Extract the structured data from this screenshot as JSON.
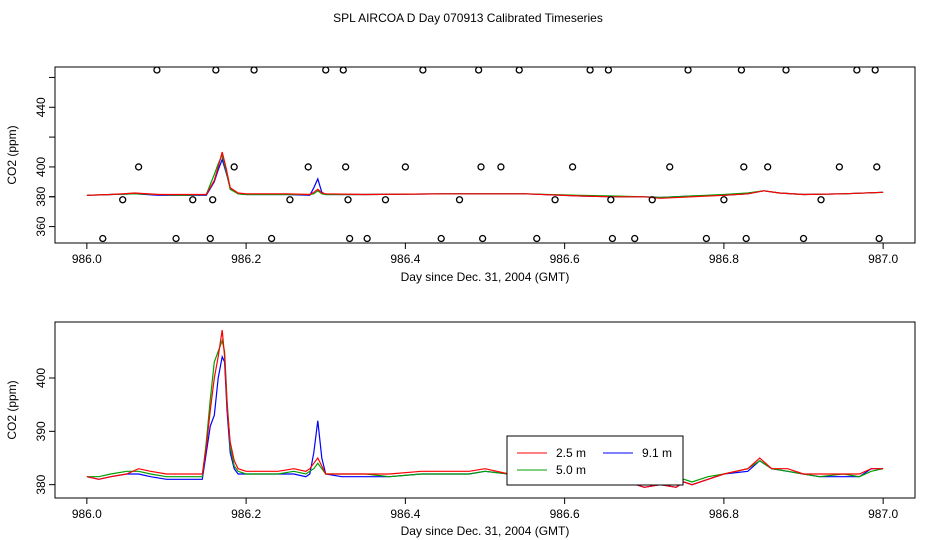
{
  "title": "SPL AIRCOA D  Day 070913  Calibrated Timeseries",
  "chart_data": [
    {
      "type": "line",
      "xlabel": "Day since Dec. 31, 2004 (GMT)",
      "ylabel": "CO2 (ppm)",
      "xlim": [
        985.96,
        987.04
      ],
      "ylim": [
        349,
        467
      ],
      "xticks": [
        "986.0",
        "986.2",
        "986.4",
        "986.6",
        "986.8",
        "987.0"
      ],
      "yticks": [
        "360",
        "380",
        "400",
        "440"
      ],
      "series": [
        {
          "name": "2.5 m",
          "color": "#ff0000",
          "x": [
            986.0,
            986.03,
            986.06,
            986.09,
            986.12,
            986.15,
            986.16,
            986.165,
            986.17,
            986.175,
            986.18,
            986.19,
            986.2,
            986.25,
            986.28,
            986.285,
            986.29,
            986.295,
            986.3,
            986.35,
            986.45,
            986.55,
            986.62,
            986.66,
            986.7,
            986.72,
            986.76,
            986.8,
            986.83,
            986.85,
            986.87,
            986.9,
            986.95,
            987.0
          ],
          "y": [
            381,
            381.5,
            382.5,
            381.5,
            381.5,
            381.5,
            391,
            400,
            410,
            399,
            386,
            382.5,
            382,
            382,
            381.5,
            383,
            385,
            382.5,
            382,
            381.5,
            382,
            382,
            380.5,
            380,
            380,
            379,
            380,
            381,
            382,
            384,
            382.5,
            381.5,
            382,
            383
          ]
        },
        {
          "name": "5.0 m",
          "color": "#00a000",
          "x": [
            986.0,
            986.03,
            986.06,
            986.09,
            986.12,
            986.15,
            986.16,
            986.165,
            986.17,
            986.175,
            986.18,
            986.19,
            986.2,
            986.25,
            986.28,
            986.285,
            986.29,
            986.295,
            986.3,
            986.35,
            986.45,
            986.55,
            986.62,
            986.66,
            986.7,
            986.72,
            986.76,
            986.8,
            986.83,
            986.85,
            986.87,
            986.9,
            986.95,
            987.0
          ],
          "y": [
            381,
            381.5,
            382,
            381.5,
            381,
            381.5,
            395,
            402,
            408,
            397,
            385,
            382,
            381.5,
            381.5,
            381.5,
            382,
            384,
            382,
            381.5,
            381.5,
            382,
            382,
            381,
            380.5,
            380,
            379.5,
            380.5,
            381.5,
            382.5,
            384,
            382.5,
            381.5,
            382,
            383
          ]
        },
        {
          "name": "9.1 m",
          "color": "#0000ff",
          "x": [
            986.0,
            986.03,
            986.06,
            986.09,
            986.12,
            986.15,
            986.16,
            986.165,
            986.17,
            986.175,
            986.18,
            986.19,
            986.2,
            986.25,
            986.28,
            986.285,
            986.29,
            986.295,
            986.3,
            986.35,
            986.45,
            986.55,
            986.62,
            986.66,
            986.7,
            986.72,
            986.76,
            986.8,
            986.83,
            986.85,
            986.87,
            986.9,
            986.95,
            987.0
          ],
          "y": [
            381,
            381.5,
            382,
            381,
            381,
            381,
            390,
            398,
            405,
            396,
            386,
            382,
            381.5,
            381.5,
            381,
            386,
            392,
            383,
            381.5,
            381.5,
            382,
            382,
            380.5,
            380,
            380,
            379.5,
            380.5,
            381,
            382,
            384,
            382.5,
            381.5,
            382,
            383
          ]
        }
      ],
      "markers": {
        "symbol": "circle",
        "x": [
          986.02,
          986.045,
          986.065,
          986.088,
          986.112,
          986.133,
          986.155,
          986.158,
          986.162,
          986.185,
          986.21,
          986.232,
          986.255,
          986.278,
          986.3,
          986.322,
          986.325,
          986.328,
          986.33,
          986.352,
          986.375,
          986.4,
          986.422,
          986.445,
          986.468,
          986.492,
          986.495,
          986.497,
          986.52,
          986.543,
          986.565,
          986.588,
          986.61,
          986.632,
          986.655,
          986.658,
          986.66,
          986.688,
          986.71,
          986.732,
          986.755,
          986.778,
          986.8,
          986.822,
          986.825,
          986.828,
          986.855,
          986.878,
          986.9,
          986.922,
          986.945,
          986.967,
          986.99,
          986.992,
          986.995
        ],
        "y": [
          352,
          378,
          400,
          465,
          352,
          378,
          352,
          378,
          465,
          400,
          465,
          352,
          378,
          400,
          465,
          465,
          400,
          378,
          352,
          352,
          378,
          400,
          465,
          352,
          378,
          465,
          400,
          352,
          400,
          465,
          352,
          378,
          400,
          465,
          465,
          378,
          352,
          352,
          378,
          400,
          465,
          352,
          378,
          465,
          400,
          352,
          400,
          465,
          352,
          378,
          400,
          465,
          465,
          400,
          352
        ]
      }
    },
    {
      "type": "line",
      "xlabel": "Day since Dec. 31, 2004 (GMT)",
      "ylabel": "CO2 (ppm)",
      "xlim": [
        985.96,
        987.04
      ],
      "ylim": [
        377.5,
        410.5
      ],
      "xticks": [
        "986.0",
        "986.2",
        "986.4",
        "986.6",
        "986.8",
        "987.0"
      ],
      "yticks": [
        "380",
        "390",
        "400"
      ],
      "legend": {
        "position": "bottom-right-center",
        "entries": [
          {
            "label": "2.5 m",
            "color": "#ff0000"
          },
          {
            "label": "9.1 m",
            "color": "#0000ff"
          },
          {
            "label": "5.0 m",
            "color": "#00a000"
          }
        ]
      },
      "series": [
        {
          "name": "2.5 m",
          "color": "#ff0000",
          "x": [
            986.0,
            986.015,
            986.03,
            986.05,
            986.065,
            986.08,
            986.1,
            986.12,
            986.145,
            986.15,
            986.155,
            986.16,
            986.165,
            986.17,
            986.173,
            986.176,
            986.18,
            986.185,
            986.19,
            986.2,
            986.22,
            986.24,
            986.26,
            986.275,
            986.28,
            986.285,
            986.29,
            986.295,
            986.3,
            986.32,
            986.35,
            986.38,
            986.42,
            986.45,
            986.48,
            986.5,
            986.53,
            986.56,
            986.6,
            986.63,
            986.66,
            986.69,
            986.7,
            986.72,
            986.74,
            986.75,
            986.76,
            986.78,
            986.8,
            986.83,
            986.845,
            986.86,
            986.88,
            986.9,
            986.92,
            986.95,
            986.97,
            986.985,
            987.0
          ],
          "y": [
            381.5,
            381,
            381.5,
            382,
            383,
            382.5,
            382,
            382,
            382,
            387,
            394,
            400,
            404,
            409,
            404,
            395,
            388,
            384.5,
            383,
            382.5,
            382.5,
            382.5,
            383,
            382.5,
            383,
            384,
            385,
            383.5,
            382,
            382,
            382,
            382,
            382.5,
            382.5,
            382.5,
            383,
            382,
            381.5,
            381,
            380.5,
            380.5,
            380,
            379.5,
            380,
            379.5,
            380.5,
            380,
            381,
            382,
            383,
            385,
            383,
            383,
            382,
            382,
            382,
            382,
            383,
            383
          ]
        },
        {
          "name": "5.0 m",
          "color": "#00a000",
          "x": [
            986.0,
            986.015,
            986.03,
            986.05,
            986.065,
            986.08,
            986.1,
            986.12,
            986.145,
            986.15,
            986.155,
            986.16,
            986.165,
            986.17,
            986.173,
            986.176,
            986.18,
            986.185,
            986.19,
            986.2,
            986.22,
            986.24,
            986.26,
            986.275,
            986.28,
            986.285,
            986.29,
            986.295,
            986.3,
            986.32,
            986.35,
            986.38,
            986.42,
            986.45,
            986.48,
            986.5,
            986.53,
            986.56,
            986.6,
            986.63,
            986.66,
            986.69,
            986.7,
            986.72,
            986.74,
            986.75,
            986.76,
            986.78,
            986.8,
            986.83,
            986.845,
            986.86,
            986.88,
            986.9,
            986.92,
            986.95,
            986.97,
            986.985,
            987.0
          ],
          "y": [
            381.5,
            381.5,
            382,
            382.5,
            382.5,
            382,
            381.5,
            381.5,
            381.5,
            388,
            396,
            403,
            405,
            407,
            405,
            396,
            387,
            383.5,
            382.5,
            382,
            382,
            382,
            382.5,
            382,
            382.5,
            383,
            384,
            383,
            382,
            382,
            382,
            381.5,
            382,
            382,
            382,
            382.5,
            382,
            381.5,
            381,
            381,
            381,
            380,
            380,
            380.5,
            380,
            381,
            380.5,
            381.5,
            382,
            383,
            384.5,
            383,
            382.5,
            382,
            381.5,
            382,
            381.5,
            382.5,
            383
          ]
        },
        {
          "name": "9.1 m",
          "color": "#0000ff",
          "x": [
            986.0,
            986.015,
            986.03,
            986.05,
            986.065,
            986.08,
            986.1,
            986.12,
            986.145,
            986.15,
            986.155,
            986.16,
            986.165,
            986.17,
            986.173,
            986.176,
            986.18,
            986.185,
            986.19,
            986.2,
            986.22,
            986.24,
            986.26,
            986.275,
            986.28,
            986.285,
            986.29,
            986.295,
            986.3,
            986.32,
            986.35,
            986.38,
            986.42,
            986.45,
            986.48,
            986.5,
            986.53,
            986.56,
            986.6,
            986.63,
            986.66,
            986.69,
            986.7,
            986.72,
            986.74,
            986.75,
            986.76,
            986.78,
            986.8,
            986.83,
            986.845,
            986.86,
            986.88,
            986.9,
            986.92,
            986.95,
            986.97,
            986.985,
            987.0
          ],
          "y": [
            381.5,
            381,
            381.5,
            382,
            382,
            381.5,
            381,
            381,
            381,
            386,
            391,
            393,
            400,
            404,
            403,
            394,
            386,
            383,
            382,
            382,
            382,
            382,
            382,
            381.5,
            382,
            386,
            392,
            385,
            382,
            381.5,
            381.5,
            381.5,
            382,
            382,
            382,
            382.5,
            382,
            381,
            381,
            380.5,
            380.5,
            380,
            379.5,
            380,
            379.5,
            380.5,
            380,
            381,
            382,
            382.5,
            384.5,
            383,
            382.5,
            382,
            381.5,
            381.5,
            381.5,
            383,
            383
          ]
        }
      ]
    }
  ]
}
